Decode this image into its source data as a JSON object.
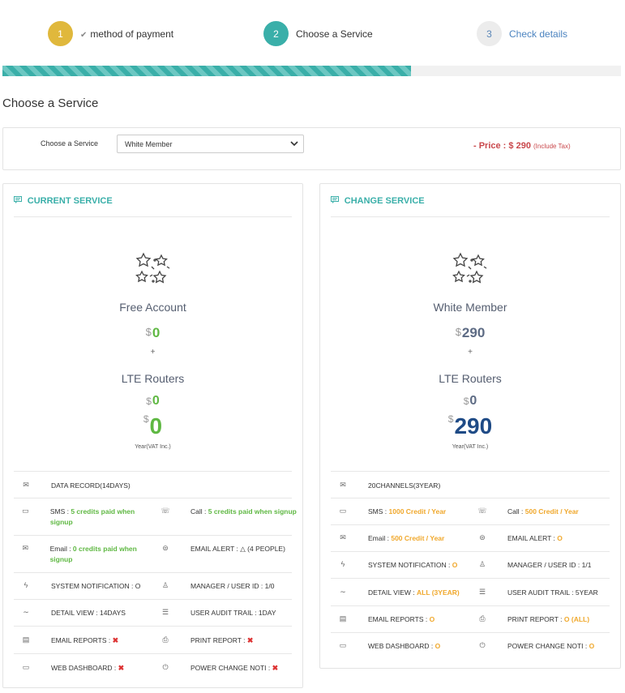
{
  "steps": [
    {
      "num": "1",
      "label": "method of payment",
      "check": "✔"
    },
    {
      "num": "2",
      "label": "Choose a Service"
    },
    {
      "num": "3",
      "label": "Check details"
    }
  ],
  "progress": 0.66,
  "page_title": "Choose a Service",
  "service_select": {
    "label": "Choose a Service",
    "value": "White Member",
    "price_prefix": "- Price : $ 290",
    "price_tax": "(Include Tax)"
  },
  "current": {
    "header": "CURRENT SERVICE",
    "plan": "Free Account",
    "plan_currency": "$",
    "plan_amount": "0",
    "plus": "+",
    "routers": "LTE Routers",
    "routers_currency": "$",
    "routers_amount": "0",
    "total_currency": "$",
    "total": "0",
    "year_note": "Year(VAT Inc.)",
    "features": {
      "data_record": "DATA RECORD(14DAYS)",
      "sms_label": "SMS : ",
      "sms_value": "5 credits paid when signup",
      "call_label": "Call : ",
      "call_value": "5 credits paid when signup",
      "email_label": "Email : ",
      "email_value": "0 credits paid when signup",
      "email_alert": "EMAIL ALERT : △ (4 PEOPLE)",
      "system_notification": "SYSTEM NOTIFICATION : O",
      "manager": "MANAGER / USER ID : 1/0",
      "detail_view": "DETAIL VIEW : 14DAYS",
      "audit_trail": "USER AUDIT TRAIL : 1DAY",
      "email_reports": "EMAIL REPORTS : ",
      "print_report": "PRINT REPORT : ",
      "web_dashboard": "WEB DASHBOARD : ",
      "power_change": "POWER CHANGE NOTI : ",
      "x_mark": "✖"
    }
  },
  "change": {
    "header": "CHANGE SERVICE",
    "plan": "White Member",
    "plan_currency": "$",
    "plan_amount": "290",
    "plus": "+",
    "routers": "LTE Routers",
    "routers_currency": "$",
    "routers_amount": "0",
    "total_currency": "$",
    "total": "290",
    "year_note": "Year(VAT Inc.)",
    "features": {
      "channels": "20CHANNELS(3YEAR)",
      "sms_label": "SMS : ",
      "sms_value": "1000 Credit / Year",
      "call_label": "Call : ",
      "call_value": "500 Credit / Year",
      "email_label": "Email : ",
      "email_value": "500 Credit / Year",
      "email_alert_label": "EMAIL ALERT : ",
      "email_alert_value": "O",
      "system_notification_label": "SYSTEM NOTIFICATION : ",
      "system_notification_value": "O",
      "manager": "MANAGER / USER ID : 1/1",
      "detail_view_label": "DETAIL VIEW : ",
      "detail_view_value": "ALL (3YEAR)",
      "audit_trail": "USER AUDIT TRAIL : 5YEAR",
      "email_reports_label": "EMAIL REPORTS : ",
      "email_reports_value": "O",
      "print_report_label": "PRINT REPORT : ",
      "print_report_value": "O (ALL)",
      "web_dashboard_label": "WEB DASHBOARD : ",
      "web_dashboard_value": "O",
      "power_change_label": "POWER CHANGE NOTI : ",
      "power_change_value": "O"
    }
  },
  "colors": {
    "accent": "#3aafa9",
    "step1": "#e0b83c",
    "price": "#c9484c",
    "green": "#5fb843",
    "orange": "#f0a82c",
    "navy": "#1f4b86"
  },
  "icons": [
    "check-icon",
    "chat-icon",
    "stars-icon",
    "envelope-icon",
    "phone-icon",
    "bolt-icon",
    "user-icon",
    "chart-icon",
    "list-icon",
    "report-icon",
    "print-icon",
    "monitor-icon",
    "power-icon",
    "alert-icon",
    "chevron-down-icon"
  ]
}
